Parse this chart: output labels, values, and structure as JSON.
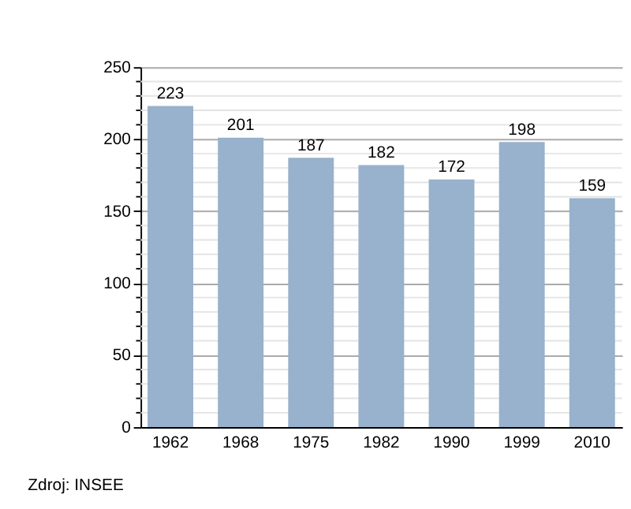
{
  "chart_data": {
    "type": "bar",
    "categories": [
      "1962",
      "1968",
      "1975",
      "1982",
      "1990",
      "1999",
      "2010"
    ],
    "values": [
      223,
      201,
      187,
      182,
      172,
      198,
      159
    ],
    "color": "#98b1cc",
    "data_labels": true,
    "ylim": [
      0,
      250
    ],
    "yticks": [
      0,
      {
        "value": 10,
        "label": null
      },
      {
        "value": 20,
        "label": null
      },
      {
        "value": 30,
        "label": null
      },
      {
        "value": 40,
        "label": null
      },
      50,
      {
        "value": 60,
        "label": null
      },
      {
        "value": 70,
        "label": null
      },
      {
        "value": 80,
        "label": null
      },
      {
        "value": 90,
        "label": null
      },
      100,
      {
        "value": 110,
        "label": null
      },
      {
        "value": 120,
        "label": null
      },
      {
        "value": 130,
        "label": null
      },
      {
        "value": 140,
        "label": null
      },
      150,
      {
        "value": 160,
        "label": null
      },
      {
        "value": 170,
        "label": null
      },
      {
        "value": 180,
        "label": null
      },
      {
        "value": 190,
        "label": null
      },
      200,
      {
        "value": 210,
        "label": null
      },
      {
        "value": 220,
        "label": null
      },
      {
        "value": 230,
        "label": null
      },
      {
        "value": 240,
        "label": null
      },
      250
    ],
    "grid": "y",
    "annotations": [
      "Zdroj: INSEE"
    ]
  }
}
